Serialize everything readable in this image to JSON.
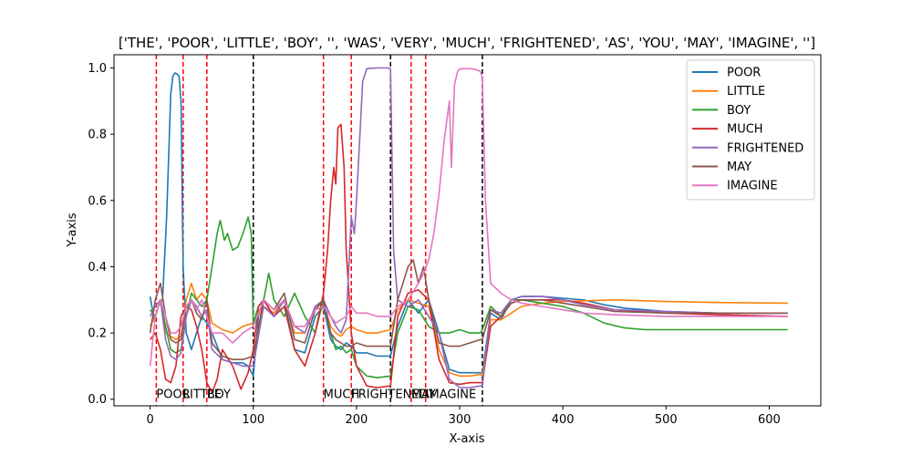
{
  "chart_data": {
    "type": "line",
    "title": "['THE', 'POOR', 'LITTLE', 'BOY', '', 'WAS', 'VERY', 'MUCH', 'FRIGHTENED', 'AS', 'YOU', 'MAY', 'IMAGINE', '']",
    "xlabel": "X-axis",
    "ylabel": "Y-axis",
    "xlim": [
      -35,
      650
    ],
    "ylim": [
      -0.02,
      1.04
    ],
    "xticks": [
      0,
      100,
      200,
      300,
      400,
      500,
      600
    ],
    "yticks": [
      0.0,
      0.2,
      0.4,
      0.6,
      0.8,
      1.0
    ],
    "xtick_labels": [
      "0",
      "100",
      "200",
      "300",
      "400",
      "500",
      "600"
    ],
    "ytick_labels": [
      "0.0",
      "0.2",
      "0.4",
      "0.6",
      "0.8",
      "1.0"
    ],
    "grid": false,
    "legend_position": "top-right",
    "vlines": [
      {
        "x": 6,
        "style": "red-dashed"
      },
      {
        "x": 32,
        "style": "red-dashed"
      },
      {
        "x": 55,
        "style": "red-dashed"
      },
      {
        "x": 100,
        "style": "black-dashed"
      },
      {
        "x": 168,
        "style": "red-dashed"
      },
      {
        "x": 195,
        "style": "red-dashed"
      },
      {
        "x": 233,
        "style": "black-dashed"
      },
      {
        "x": 253,
        "style": "red-dashed"
      },
      {
        "x": 267,
        "style": "red-dashed"
      },
      {
        "x": 322,
        "style": "black-dashed"
      }
    ],
    "word_labels": [
      {
        "x": 6,
        "text": "POOR"
      },
      {
        "x": 32,
        "text": "LITTLE"
      },
      {
        "x": 55,
        "text": "BOY"
      },
      {
        "x": 168,
        "text": "MUCH"
      },
      {
        "x": 195,
        "text": "FRIGHTENED"
      },
      {
        "x": 253,
        "text": "MAY"
      },
      {
        "x": 267,
        "text": "IMAGINE"
      }
    ],
    "series": [
      {
        "name": "POOR",
        "color": "#1f77b4",
        "x": [
          0,
          4,
          8,
          12,
          16,
          20,
          22,
          24,
          26,
          28,
          30,
          32,
          35,
          40,
          45,
          50,
          55,
          60,
          70,
          80,
          90,
          95,
          100,
          102,
          105,
          110,
          120,
          130,
          140,
          150,
          160,
          168,
          175,
          180,
          185,
          190,
          195,
          200,
          210,
          220,
          233,
          240,
          250,
          260,
          270,
          280,
          290,
          300,
          310,
          320,
          322,
          330,
          340,
          350,
          360,
          380,
          400,
          420,
          440,
          460,
          480,
          500,
          550,
          618
        ],
        "y": [
          0.31,
          0.24,
          0.28,
          0.3,
          0.55,
          0.92,
          0.975,
          0.985,
          0.982,
          0.975,
          0.9,
          0.4,
          0.2,
          0.15,
          0.2,
          0.25,
          0.23,
          0.2,
          0.12,
          0.11,
          0.11,
          0.1,
          0.07,
          0.14,
          0.25,
          0.3,
          0.25,
          0.3,
          0.15,
          0.14,
          0.25,
          0.28,
          0.18,
          0.16,
          0.15,
          0.17,
          0.16,
          0.14,
          0.14,
          0.13,
          0.13,
          0.22,
          0.3,
          0.26,
          0.3,
          0.2,
          0.09,
          0.08,
          0.08,
          0.08,
          0.08,
          0.26,
          0.24,
          0.3,
          0.31,
          0.31,
          0.305,
          0.3,
          0.285,
          0.275,
          0.27,
          0.265,
          0.26,
          0.26
        ]
      },
      {
        "name": "LITTLE",
        "color": "#ff7f0e",
        "x": [
          0,
          5,
          10,
          15,
          20,
          25,
          30,
          35,
          40,
          45,
          50,
          55,
          60,
          70,
          80,
          90,
          100,
          110,
          120,
          130,
          140,
          150,
          160,
          168,
          175,
          180,
          185,
          190,
          195,
          200,
          210,
          220,
          233,
          240,
          250,
          260,
          270,
          280,
          290,
          300,
          310,
          320,
          322,
          330,
          340,
          350,
          360,
          380,
          400,
          450,
          500,
          550,
          618
        ],
        "y": [
          0.22,
          0.25,
          0.3,
          0.2,
          0.19,
          0.18,
          0.19,
          0.3,
          0.35,
          0.3,
          0.32,
          0.3,
          0.23,
          0.21,
          0.2,
          0.22,
          0.23,
          0.28,
          0.26,
          0.3,
          0.2,
          0.2,
          0.28,
          0.29,
          0.22,
          0.2,
          0.19,
          0.21,
          0.22,
          0.21,
          0.2,
          0.2,
          0.21,
          0.27,
          0.3,
          0.29,
          0.28,
          0.15,
          0.08,
          0.07,
          0.07,
          0.075,
          0.07,
          0.24,
          0.24,
          0.26,
          0.28,
          0.29,
          0.295,
          0.3,
          0.295,
          0.292,
          0.29
        ]
      },
      {
        "name": "BOY",
        "color": "#2ca02c",
        "x": [
          0,
          5,
          10,
          15,
          20,
          25,
          30,
          35,
          40,
          45,
          50,
          55,
          60,
          65,
          68,
          72,
          75,
          80,
          85,
          90,
          95,
          98,
          100,
          102,
          105,
          110,
          115,
          120,
          130,
          140,
          150,
          160,
          168,
          175,
          180,
          185,
          190,
          195,
          200,
          210,
          220,
          233,
          240,
          250,
          260,
          270,
          280,
          290,
          300,
          310,
          320,
          322,
          330,
          340,
          350,
          360,
          380,
          400,
          420,
          440,
          460,
          480,
          500,
          550,
          618
        ],
        "y": [
          0.27,
          0.25,
          0.3,
          0.22,
          0.15,
          0.14,
          0.15,
          0.25,
          0.32,
          0.3,
          0.28,
          0.3,
          0.4,
          0.5,
          0.54,
          0.48,
          0.5,
          0.45,
          0.46,
          0.5,
          0.55,
          0.5,
          0.22,
          0.25,
          0.28,
          0.3,
          0.38,
          0.3,
          0.25,
          0.32,
          0.25,
          0.2,
          0.3,
          0.2,
          0.15,
          0.16,
          0.14,
          0.15,
          0.1,
          0.07,
          0.065,
          0.07,
          0.2,
          0.28,
          0.27,
          0.22,
          0.2,
          0.2,
          0.21,
          0.2,
          0.2,
          0.21,
          0.28,
          0.25,
          0.3,
          0.3,
          0.29,
          0.28,
          0.26,
          0.23,
          0.215,
          0.21,
          0.21,
          0.21,
          0.21
        ]
      },
      {
        "name": "MUCH",
        "color": "#d62728",
        "x": [
          0,
          5,
          10,
          15,
          20,
          25,
          30,
          35,
          40,
          45,
          50,
          55,
          60,
          65,
          70,
          80,
          88,
          95,
          100,
          105,
          110,
          120,
          130,
          140,
          150,
          160,
          168,
          172,
          175,
          178,
          180,
          182,
          185,
          188,
          190,
          193,
          195,
          200,
          210,
          220,
          233,
          240,
          250,
          260,
          270,
          280,
          290,
          300,
          310,
          320,
          322,
          330,
          340,
          350,
          360,
          380,
          400,
          420,
          450,
          500,
          550,
          618
        ],
        "y": [
          0.18,
          0.2,
          0.15,
          0.06,
          0.05,
          0.1,
          0.25,
          0.28,
          0.27,
          0.22,
          0.15,
          0.05,
          0.02,
          0.06,
          0.15,
          0.1,
          0.03,
          0.08,
          0.15,
          0.28,
          0.3,
          0.25,
          0.28,
          0.15,
          0.1,
          0.2,
          0.32,
          0.45,
          0.6,
          0.7,
          0.65,
          0.82,
          0.83,
          0.7,
          0.45,
          0.3,
          0.2,
          0.1,
          0.04,
          0.035,
          0.04,
          0.25,
          0.32,
          0.33,
          0.3,
          0.12,
          0.05,
          0.045,
          0.05,
          0.05,
          0.05,
          0.22,
          0.25,
          0.29,
          0.3,
          0.3,
          0.3,
          0.29,
          0.27,
          0.26,
          0.255,
          0.25
        ]
      },
      {
        "name": "FRIGHTENED",
        "color": "#9467bd",
        "x": [
          0,
          5,
          10,
          15,
          20,
          25,
          30,
          35,
          40,
          45,
          50,
          55,
          60,
          70,
          80,
          90,
          100,
          110,
          120,
          130,
          140,
          150,
          160,
          168,
          175,
          180,
          185,
          190,
          195,
          198,
          200,
          203,
          206,
          210,
          220,
          230,
          233,
          236,
          240,
          250,
          260,
          270,
          280,
          290,
          300,
          310,
          320,
          322,
          330,
          340,
          350,
          360,
          380,
          400,
          420,
          450,
          500,
          550,
          618
        ],
        "y": [
          0.25,
          0.28,
          0.3,
          0.18,
          0.13,
          0.12,
          0.14,
          0.25,
          0.3,
          0.28,
          0.25,
          0.27,
          0.15,
          0.12,
          0.11,
          0.1,
          0.1,
          0.28,
          0.25,
          0.3,
          0.22,
          0.2,
          0.28,
          0.3,
          0.25,
          0.22,
          0.2,
          0.24,
          0.55,
          0.5,
          0.6,
          0.78,
          0.96,
          0.998,
          1.0,
          1.0,
          0.998,
          0.45,
          0.3,
          0.28,
          0.3,
          0.25,
          0.2,
          0.06,
          0.035,
          0.035,
          0.04,
          0.04,
          0.27,
          0.26,
          0.3,
          0.31,
          0.31,
          0.3,
          0.285,
          0.27,
          0.265,
          0.26,
          0.26
        ]
      },
      {
        "name": "MAY",
        "color": "#8c564b",
        "x": [
          0,
          5,
          10,
          15,
          20,
          25,
          30,
          35,
          40,
          45,
          50,
          55,
          60,
          70,
          80,
          90,
          100,
          110,
          120,
          130,
          140,
          150,
          160,
          168,
          175,
          180,
          185,
          190,
          195,
          200,
          210,
          220,
          233,
          240,
          245,
          250,
          255,
          260,
          265,
          270,
          280,
          290,
          300,
          310,
          320,
          322,
          330,
          340,
          350,
          360,
          380,
          400,
          420,
          450,
          500,
          550,
          618
        ],
        "y": [
          0.2,
          0.3,
          0.35,
          0.25,
          0.18,
          0.17,
          0.18,
          0.28,
          0.3,
          0.26,
          0.24,
          0.3,
          0.17,
          0.13,
          0.12,
          0.12,
          0.13,
          0.3,
          0.27,
          0.32,
          0.18,
          0.17,
          0.27,
          0.3,
          0.2,
          0.18,
          0.17,
          0.16,
          0.16,
          0.17,
          0.16,
          0.16,
          0.16,
          0.3,
          0.35,
          0.4,
          0.42,
          0.35,
          0.4,
          0.3,
          0.17,
          0.16,
          0.16,
          0.17,
          0.18,
          0.18,
          0.27,
          0.25,
          0.29,
          0.3,
          0.3,
          0.29,
          0.28,
          0.265,
          0.26,
          0.26,
          0.26
        ]
      },
      {
        "name": "IMAGINE",
        "color": "#e377c2",
        "x": [
          0,
          5,
          10,
          15,
          20,
          25,
          30,
          35,
          40,
          45,
          50,
          55,
          60,
          70,
          80,
          90,
          100,
          110,
          120,
          130,
          140,
          150,
          160,
          168,
          175,
          180,
          185,
          190,
          195,
          200,
          210,
          220,
          233,
          240,
          250,
          260,
          265,
          270,
          275,
          280,
          285,
          290,
          292,
          295,
          298,
          300,
          305,
          310,
          315,
          320,
          322,
          325,
          330,
          340,
          350,
          360,
          380,
          400,
          420,
          450,
          500,
          550,
          618
        ],
        "y": [
          0.1,
          0.25,
          0.3,
          0.25,
          0.2,
          0.2,
          0.22,
          0.28,
          0.3,
          0.27,
          0.3,
          0.25,
          0.2,
          0.2,
          0.17,
          0.2,
          0.22,
          0.3,
          0.27,
          0.3,
          0.22,
          0.22,
          0.27,
          0.28,
          0.25,
          0.23,
          0.24,
          0.25,
          0.28,
          0.26,
          0.26,
          0.25,
          0.25,
          0.28,
          0.3,
          0.35,
          0.38,
          0.42,
          0.5,
          0.62,
          0.78,
          0.9,
          0.7,
          0.95,
          0.99,
          0.997,
          0.998,
          0.998,
          0.996,
          0.99,
          0.97,
          0.6,
          0.35,
          0.32,
          0.3,
          0.29,
          0.28,
          0.27,
          0.26,
          0.255,
          0.25,
          0.25,
          0.25
        ]
      }
    ]
  }
}
